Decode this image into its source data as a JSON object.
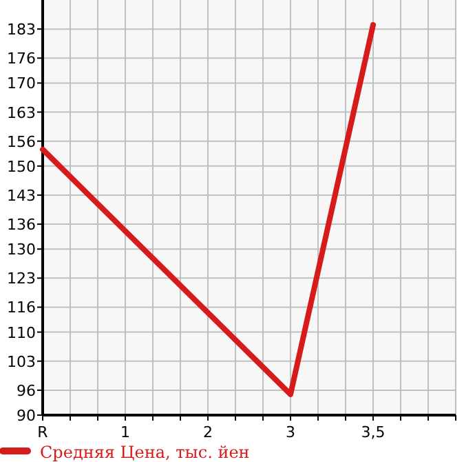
{
  "chart_data": {
    "type": "line",
    "categories": [
      "R",
      "1",
      "2",
      "3",
      "3,5",
      null
    ],
    "series": [
      {
        "name": "Средняя Цена, тыс. йен",
        "color": "#d71a1a",
        "values": [
          154,
          null,
          null,
          95,
          184,
          null
        ]
      }
    ],
    "ylim": [
      90,
      190
    ],
    "yticks": [
      90,
      96,
      103,
      110,
      116,
      123,
      130,
      136,
      143,
      150,
      156,
      163,
      170,
      176,
      183
    ],
    "grid": true,
    "legend": "bottom",
    "marker": "none",
    "line_style": "solid"
  }
}
